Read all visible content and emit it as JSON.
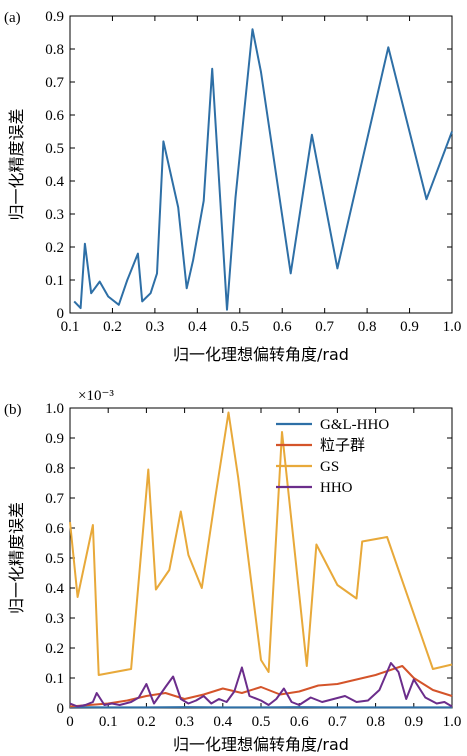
{
  "chart_data": [
    {
      "panel_label": "(a)",
      "type": "line",
      "xlabel": "归一化理想偏转角度/rad",
      "ylabel": "归一化精度误差",
      "xlim": [
        0.1,
        1.0
      ],
      "ylim": [
        0,
        0.9
      ],
      "xticks": [
        "0.1",
        "0.2",
        "0.3",
        "0.4",
        "0.5",
        "0.6",
        "0.7",
        "0.8",
        "0.9",
        "1.0"
      ],
      "yticks": [
        "0",
        "0.1",
        "0.2",
        "0.3",
        "0.4",
        "0.5",
        "0.6",
        "0.7",
        "0.8",
        "0.9"
      ],
      "grid": false,
      "series": [
        {
          "color": "#2e6fa6",
          "x": [
            0.11,
            0.125,
            0.135,
            0.15,
            0.17,
            0.19,
            0.215,
            0.235,
            0.26,
            0.27,
            0.29,
            0.305,
            0.32,
            0.355,
            0.375,
            0.39,
            0.415,
            0.435,
            0.47,
            0.49,
            0.53,
            0.55,
            0.62,
            0.67,
            0.73,
            0.85,
            0.94,
            1.0
          ],
          "y": [
            0.035,
            0.015,
            0.21,
            0.06,
            0.095,
            0.05,
            0.025,
            0.1,
            0.18,
            0.035,
            0.06,
            0.12,
            0.52,
            0.32,
            0.075,
            0.16,
            0.34,
            0.74,
            0.01,
            0.35,
            0.86,
            0.73,
            0.12,
            0.54,
            0.135,
            0.805,
            0.345,
            0.55
          ]
        }
      ]
    },
    {
      "panel_label": "(b)",
      "type": "line",
      "xlabel": "归一化理想偏转角度/rad",
      "ylabel": "归一化精度误差",
      "y_scale_label": "×10⁻³",
      "xlim": [
        0,
        1.0
      ],
      "ylim": [
        0,
        1.0
      ],
      "xticks": [
        "0",
        "0.1",
        "0.2",
        "0.3",
        "0.4",
        "0.5",
        "0.6",
        "0.7",
        "0.8",
        "0.9",
        "1.0"
      ],
      "yticks": [
        "0",
        "0.1",
        "0.2",
        "0.3",
        "0.4",
        "0.5",
        "0.6",
        "0.7",
        "0.8",
        "0.9",
        "1.0"
      ],
      "grid": false,
      "legend_position": "top-right",
      "series": [
        {
          "name": "G&L-HHO",
          "color": "#2e6fa6",
          "x": [
            0,
            0.1,
            0.2,
            0.3,
            0.4,
            0.5,
            0.6,
            0.7,
            0.8,
            0.9,
            1.0
          ],
          "y": [
            0.003,
            0.002,
            0.002,
            0.003,
            0.002,
            0.002,
            0.003,
            0.002,
            0.002,
            0.002,
            0.002
          ]
        },
        {
          "name": "粒子群",
          "color": "#d4542a",
          "x": [
            0,
            0.05,
            0.1,
            0.15,
            0.2,
            0.25,
            0.3,
            0.35,
            0.4,
            0.45,
            0.5,
            0.55,
            0.6,
            0.65,
            0.7,
            0.75,
            0.8,
            0.87,
            0.9,
            0.95,
            1.0
          ],
          "y": [
            0.005,
            0.01,
            0.015,
            0.025,
            0.04,
            0.05,
            0.03,
            0.045,
            0.065,
            0.05,
            0.07,
            0.045,
            0.055,
            0.075,
            0.08,
            0.095,
            0.11,
            0.14,
            0.1,
            0.06,
            0.04
          ]
        },
        {
          "name": "GS",
          "color": "#e8a93a",
          "x": [
            0,
            0.02,
            0.06,
            0.075,
            0.16,
            0.205,
            0.225,
            0.26,
            0.29,
            0.31,
            0.345,
            0.38,
            0.415,
            0.44,
            0.5,
            0.52,
            0.555,
            0.585,
            0.62,
            0.645,
            0.7,
            0.75,
            0.765,
            0.83,
            0.95,
            1.0
          ],
          "y": [
            0.62,
            0.37,
            0.61,
            0.11,
            0.13,
            0.795,
            0.395,
            0.46,
            0.655,
            0.51,
            0.4,
            0.7,
            0.985,
            0.77,
            0.16,
            0.12,
            0.92,
            0.56,
            0.14,
            0.545,
            0.41,
            0.365,
            0.555,
            0.57,
            0.13,
            0.145
          ]
        },
        {
          "name": "HHO",
          "color": "#6b2d8b",
          "x": [
            0,
            0.02,
            0.04,
            0.06,
            0.07,
            0.09,
            0.11,
            0.13,
            0.16,
            0.18,
            0.2,
            0.22,
            0.25,
            0.27,
            0.29,
            0.31,
            0.33,
            0.35,
            0.37,
            0.39,
            0.41,
            0.43,
            0.45,
            0.47,
            0.5,
            0.52,
            0.54,
            0.56,
            0.58,
            0.6,
            0.63,
            0.66,
            0.69,
            0.72,
            0.75,
            0.78,
            0.81,
            0.84,
            0.86,
            0.88,
            0.9,
            0.93,
            0.96,
            0.98,
            1.0
          ],
          "y": [
            0.015,
            0.005,
            0.01,
            0.02,
            0.05,
            0.01,
            0.015,
            0.01,
            0.02,
            0.035,
            0.08,
            0.015,
            0.07,
            0.105,
            0.03,
            0.015,
            0.025,
            0.04,
            0.015,
            0.03,
            0.02,
            0.055,
            0.135,
            0.04,
            0.025,
            0.01,
            0.03,
            0.065,
            0.02,
            0.01,
            0.035,
            0.02,
            0.03,
            0.04,
            0.02,
            0.025,
            0.06,
            0.15,
            0.12,
            0.03,
            0.095,
            0.035,
            0.015,
            0.02,
            0.005
          ]
        }
      ]
    }
  ]
}
